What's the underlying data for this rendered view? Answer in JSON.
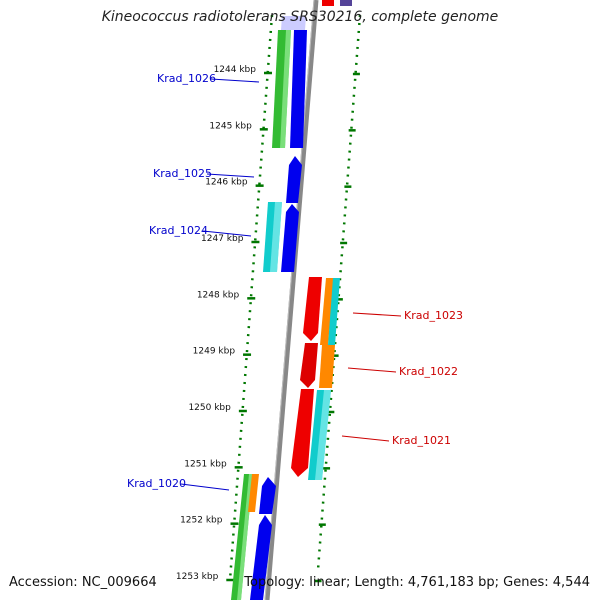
{
  "title": "Kineococcus radiotolerans SRS30216, complete genome",
  "footer": {
    "accession": "Accession: NC_009664",
    "summary": "Topology: linear; Length: 4,761,183 bp; Genes: 4,544"
  },
  "scale": {
    "unit": "kbp",
    "ticks": [
      1244,
      1245,
      1246,
      1247,
      1248,
      1249,
      1250,
      1251,
      1252,
      1253
    ],
    "tick_labels": [
      "1244 kbp",
      "1245 kbp",
      "1246 kbp",
      "1247 kbp",
      "1248 kbp",
      "1249 kbp",
      "1250 kbp",
      "1251 kbp",
      "1252 kbp",
      "1253 kbp"
    ]
  },
  "colors": {
    "minus_strand_label": "#0000cc",
    "plus_strand_label": "#cc0000",
    "dots": "#007700",
    "green": "#33bb33",
    "blue": "#0000ee",
    "cyan": "#11cccc",
    "orange": "#ff8800",
    "red": "#ee0000",
    "purple": "#554499",
    "axis": "#888888"
  },
  "genes": [
    {
      "name": "Krad_1026",
      "strand": "minus"
    },
    {
      "name": "Krad_1025",
      "strand": "minus"
    },
    {
      "name": "Krad_1024",
      "strand": "minus"
    },
    {
      "name": "Krad_1023",
      "strand": "plus"
    },
    {
      "name": "Krad_1022",
      "strand": "plus"
    },
    {
      "name": "Krad_1021",
      "strand": "plus"
    },
    {
      "name": "Krad_1020",
      "strand": "minus"
    }
  ]
}
